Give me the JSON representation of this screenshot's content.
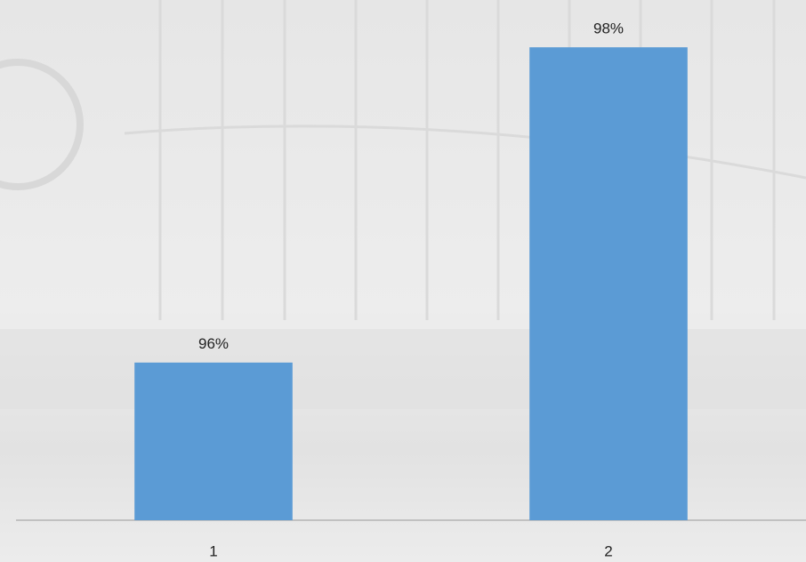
{
  "chart_data": {
    "type": "bar",
    "categories": [
      "1",
      "2"
    ],
    "values": [
      96,
      98
    ],
    "value_labels": [
      "96%",
      "98%"
    ],
    "color": "#5b9bd5",
    "ylim": [
      95,
      98.3
    ]
  }
}
